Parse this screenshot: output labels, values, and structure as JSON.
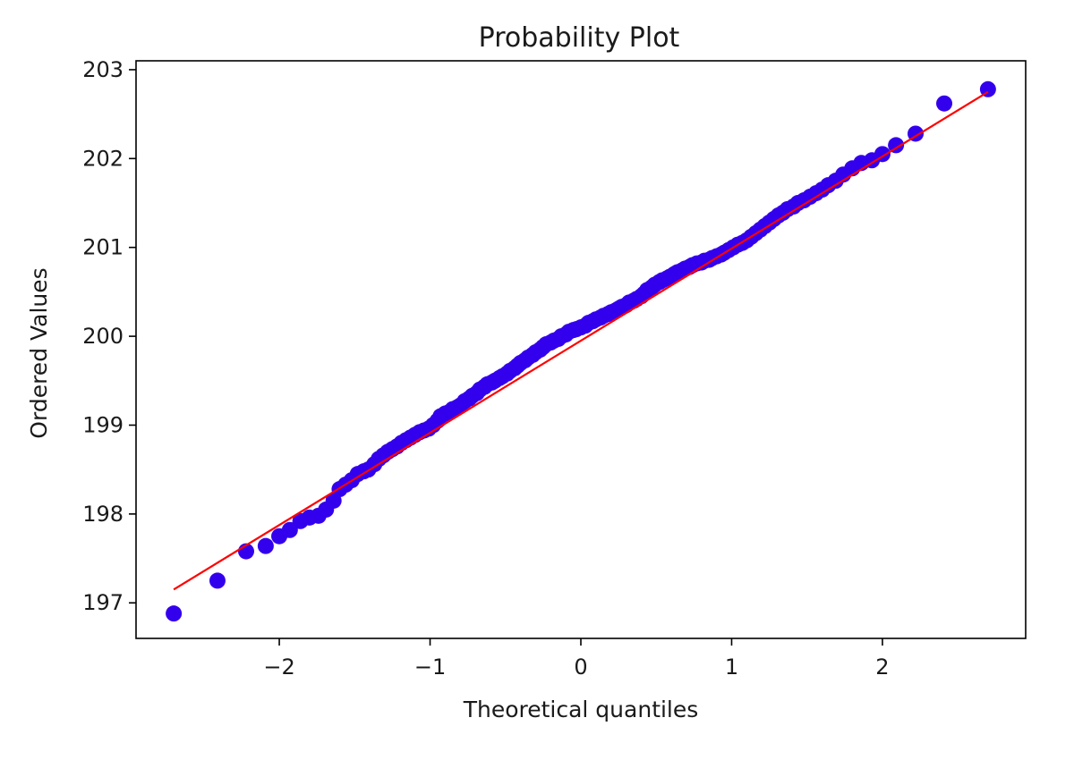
{
  "chart_data": {
    "type": "scatter",
    "title": "Probability Plot",
    "xlabel": "Theoretical quantiles",
    "ylabel": "Ordered Values",
    "xlim": [
      -2.95,
      2.95
    ],
    "ylim": [
      196.6,
      203.1
    ],
    "x_ticks": [
      -2,
      -1,
      0,
      1,
      2
    ],
    "x_tick_labels": [
      "−2",
      "−1",
      "0",
      "1",
      "2"
    ],
    "y_ticks": [
      197,
      198,
      199,
      200,
      201,
      202,
      203
    ],
    "y_tick_labels": [
      "197",
      "198",
      "199",
      "200",
      "201",
      "202",
      "203"
    ],
    "grid": false,
    "legend": "none",
    "marker_color": "#3300ee",
    "line_color": "#ff0000",
    "fit_line": {
      "x": [
        -2.7,
        2.7
      ],
      "y": [
        197.15,
        202.75
      ]
    },
    "points": {
      "x": [
        -2.7,
        -2.41,
        -2.22,
        -2.09,
        -2.0,
        -1.93,
        -1.86,
        -1.8,
        -1.74,
        -1.69,
        -1.64,
        -1.6,
        -1.56,
        -1.52,
        -1.48,
        -1.44,
        -1.41,
        -1.37,
        -1.34,
        -1.31,
        -1.28,
        -1.25,
        -1.22,
        -1.19,
        -1.16,
        -1.13,
        -1.1,
        -1.07,
        -1.04,
        -1.01,
        -0.98,
        -0.95,
        -0.93,
        -0.9,
        -0.87,
        -0.85,
        -0.82,
        -0.8,
        -0.77,
        -0.74,
        -0.72,
        -0.69,
        -0.67,
        -0.64,
        -0.62,
        -0.59,
        -0.57,
        -0.54,
        -0.52,
        -0.49,
        -0.47,
        -0.44,
        -0.42,
        -0.4,
        -0.37,
        -0.35,
        -0.32,
        -0.3,
        -0.27,
        -0.25,
        -0.23,
        -0.2,
        -0.18,
        -0.15,
        -0.13,
        -0.1,
        -0.08,
        -0.05,
        -0.03,
        0.0,
        0.03,
        0.05,
        0.08,
        0.1,
        0.13,
        0.15,
        0.18,
        0.2,
        0.23,
        0.25,
        0.27,
        0.3,
        0.32,
        0.35,
        0.37,
        0.4,
        0.42,
        0.44,
        0.47,
        0.49,
        0.52,
        0.54,
        0.57,
        0.59,
        0.62,
        0.64,
        0.67,
        0.69,
        0.72,
        0.74,
        0.77,
        0.8,
        0.82,
        0.85,
        0.87,
        0.9,
        0.93,
        0.95,
        0.98,
        1.01,
        1.04,
        1.07,
        1.1,
        1.13,
        1.16,
        1.19,
        1.22,
        1.25,
        1.28,
        1.31,
        1.34,
        1.37,
        1.41,
        1.44,
        1.48,
        1.52,
        1.56,
        1.6,
        1.64,
        1.69,
        1.74,
        1.8,
        1.86,
        1.93,
        2.0,
        2.09,
        2.22,
        2.41,
        2.7
      ],
      "y": [
        196.88,
        197.25,
        197.58,
        197.64,
        197.75,
        197.82,
        197.92,
        197.96,
        197.98,
        198.05,
        198.15,
        198.28,
        198.33,
        198.38,
        198.45,
        198.48,
        198.5,
        198.56,
        198.62,
        198.66,
        198.7,
        198.73,
        198.76,
        198.8,
        198.83,
        198.86,
        198.89,
        198.92,
        198.94,
        198.96,
        199.0,
        199.05,
        199.1,
        199.13,
        199.15,
        199.18,
        199.2,
        199.22,
        199.27,
        199.3,
        199.33,
        199.36,
        199.4,
        199.43,
        199.46,
        199.48,
        199.5,
        199.53,
        199.55,
        199.58,
        199.61,
        199.64,
        199.67,
        199.7,
        199.73,
        199.76,
        199.79,
        199.82,
        199.85,
        199.88,
        199.91,
        199.93,
        199.95,
        199.97,
        200.0,
        200.02,
        200.05,
        200.07,
        200.08,
        200.1,
        200.12,
        200.15,
        200.17,
        200.19,
        200.21,
        200.23,
        200.25,
        200.27,
        200.29,
        200.31,
        200.33,
        200.35,
        200.38,
        200.4,
        200.42,
        200.45,
        200.48,
        200.52,
        200.55,
        200.58,
        200.61,
        200.63,
        200.65,
        200.67,
        200.7,
        200.72,
        200.74,
        200.76,
        200.78,
        200.8,
        200.82,
        200.83,
        200.85,
        200.86,
        200.88,
        200.9,
        200.92,
        200.94,
        200.97,
        201.0,
        201.03,
        201.05,
        201.08,
        201.12,
        201.16,
        201.2,
        201.24,
        201.28,
        201.32,
        201.36,
        201.39,
        201.43,
        201.46,
        201.5,
        201.53,
        201.57,
        201.61,
        201.65,
        201.7,
        201.75,
        201.82,
        201.89,
        201.95,
        201.98,
        202.05,
        202.15,
        202.28,
        202.62,
        202.78
      ]
    }
  }
}
